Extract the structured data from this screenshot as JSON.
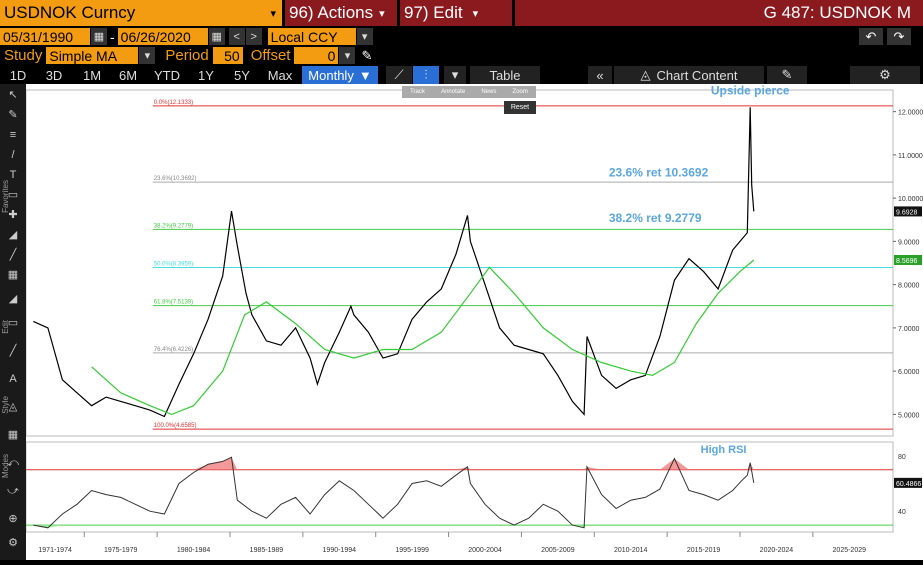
{
  "titlebar": {
    "security": "USDNOK Curncy",
    "actions": "96) Actions",
    "edit": "97) Edit",
    "right_title": "G 487: USDNOK M"
  },
  "params": {
    "start_date": "05/31/1990",
    "dash": "-",
    "end_date": "06/26/2020",
    "currency": "Local CCY",
    "study_label": "Study",
    "study_value": "Simple MA",
    "period_label": "Period",
    "period_value": "50",
    "offset_label": "Offset",
    "offset_value": "0"
  },
  "tabs": [
    "1D",
    "3D",
    "1M",
    "6M",
    "YTD",
    "1Y",
    "5Y",
    "Max"
  ],
  "frequency": "Monthly",
  "table_label": "Table",
  "chart_content_label": "Chart Content",
  "overlay_menu": {
    "track": "Track",
    "annotate": "Annotate",
    "news": "News",
    "zoom": "Zoom",
    "reset": "Reset"
  },
  "side_labels": {
    "favorites": "Favorites",
    "edit": "Edit",
    "style": "Style",
    "modes": "Modes"
  },
  "icons": [
    "cursor-icon",
    "pencil-icon",
    "fib-icon",
    "line-icon",
    "text-icon",
    "ruler-icon",
    "crosshair-icon",
    "shape-icon",
    "grid-icon",
    "undo-icon",
    "redo-icon",
    "gear-icon",
    "edit-icon",
    "chart-icon"
  ],
  "colors": {
    "price": "#000000",
    "ma": "#33cc33",
    "rsi": "#333333",
    "annot": "#5ba7e0",
    "fib_red": "#e03030",
    "fib_green": "#44cc44",
    "fib_cyan": "#44dddd",
    "fib_gray": "#aaaaaa",
    "rsi_high_fill": "#f08080",
    "rsi_low_fill": "#90ee90"
  },
  "chart_data": {
    "type": "line",
    "x_ticks": [
      "1971-1974",
      "1975-1979",
      "1980-1984",
      "1985-1989",
      "1990-1994",
      "1995-1999",
      "2000-2004",
      "2005-2009",
      "2010-2014",
      "2015-2019",
      "2020-2024",
      "2025-2029"
    ],
    "x_tick_years": [
      1972.5,
      1977,
      1982,
      1987,
      1992,
      1997,
      2002,
      2007,
      2012,
      2017,
      2022,
      2027
    ],
    "xlim": [
      1970.5,
      2030
    ],
    "ylim": [
      4.5,
      12.5
    ],
    "y_ticks": [
      "5.0000",
      "6.0000",
      "7.0000",
      "8.0000",
      "9.0000",
      "10.0000",
      "11.0000",
      "12.0000"
    ],
    "y_tick_values": [
      5,
      6,
      7,
      8,
      9,
      10,
      11,
      12
    ],
    "last_price_label": "9.6928",
    "last_price": 9.6928,
    "ma_label": "8.5696",
    "ma_value": 8.5696,
    "price_series": {
      "name": "USDNOK",
      "x": [
        1971,
        1972,
        1973,
        1974,
        1975,
        1976,
        1977,
        1978,
        1979,
        1980,
        1981,
        1982,
        1983,
        1984,
        1984.6,
        1985,
        1985.6,
        1986,
        1987,
        1988,
        1989,
        1990,
        1990.5,
        1991,
        1992,
        1992.8,
        1993,
        1994,
        1995,
        1996,
        1997,
        1998,
        1999,
        2000,
        2000.8,
        2001,
        2002,
        2003,
        2004,
        2005,
        2006,
        2007,
        2008,
        2008.8,
        2009,
        2010,
        2011,
        2012,
        2013,
        2014,
        2015,
        2016,
        2017,
        2018,
        2019,
        2019.5,
        2020,
        2020.2,
        2020.3,
        2020.45
      ],
      "y": [
        7.15,
        7.0,
        5.8,
        5.5,
        5.2,
        5.4,
        5.3,
        5.2,
        5.1,
        4.95,
        5.7,
        6.4,
        7.2,
        8.2,
        9.7,
        8.9,
        7.8,
        7.3,
        6.7,
        6.6,
        7.0,
        6.3,
        5.7,
        6.2,
        6.9,
        7.5,
        7.3,
        6.9,
        6.3,
        6.4,
        7.2,
        7.6,
        7.9,
        8.7,
        9.6,
        9.0,
        8.0,
        7.0,
        6.6,
        6.5,
        6.4,
        5.9,
        5.3,
        5.0,
        6.8,
        5.9,
        5.6,
        5.8,
        5.9,
        6.8,
        8.1,
        8.6,
        8.3,
        7.9,
        8.8,
        9.0,
        9.2,
        12.1,
        10.3,
        9.6928
      ]
    },
    "ma_series": {
      "name": "Simple MA 50",
      "x": [
        1975,
        1977,
        1979,
        1980.5,
        1982,
        1984,
        1985.5,
        1987,
        1989,
        1991,
        1993,
        1995,
        1997,
        1999,
        2001,
        2002.3,
        2004,
        2006,
        2008,
        2010,
        2012,
        2013.5,
        2015,
        2016.5,
        2018,
        2019.5,
        2020.45
      ],
      "y": [
        6.1,
        5.5,
        5.2,
        5.0,
        5.2,
        6.0,
        7.3,
        7.6,
        7.1,
        6.5,
        6.3,
        6.5,
        6.5,
        6.9,
        7.8,
        8.4,
        7.8,
        7.0,
        6.5,
        6.2,
        6.0,
        5.9,
        6.2,
        7.1,
        7.8,
        8.3,
        8.5696
      ]
    },
    "fib_levels": [
      {
        "label": "0.0%(12.1333)",
        "value": 12.1333,
        "color": "#e03030"
      },
      {
        "label": "23.6%(10.3692)",
        "value": 10.3692,
        "color": "#aaaaaa"
      },
      {
        "label": "38.2%(9.2779)",
        "value": 9.2779,
        "color": "#44cc44"
      },
      {
        "label": "50.0%(8.3959)",
        "value": 8.3959,
        "color": "#44dddd"
      },
      {
        "label": "61.8%(7.5139)",
        "value": 7.5139,
        "color": "#44cc44"
      },
      {
        "label": "76.4%(6.4226)",
        "value": 6.4226,
        "color": "#aaaaaa"
      },
      {
        "label": "100.0%(4.6585)",
        "value": 4.6585,
        "color": "#e03030"
      }
    ],
    "annotations": [
      {
        "text": "Upside pierce",
        "x": 2017.5,
        "y": 12.4
      },
      {
        "text": "23.6% ret 10.3692",
        "x": 2010.5,
        "y": 10.5
      },
      {
        "text": "38.2% ret 9.2779",
        "x": 2010.5,
        "y": 9.45
      }
    ],
    "rsi": {
      "ylim": [
        25,
        90
      ],
      "y_ticks": [
        "40",
        "60",
        "80"
      ],
      "y_tick_values": [
        40,
        60,
        80
      ],
      "high_level": 70,
      "low_level": 30,
      "last_label": "60.4866",
      "last_value": 60.4866,
      "annotation": "High RSI",
      "x": [
        1971,
        1972,
        1973,
        1974,
        1975,
        1976,
        1977,
        1978,
        1979,
        1980,
        1981,
        1982,
        1983,
        1984,
        1984.6,
        1985,
        1986,
        1987,
        1988,
        1989,
        1990,
        1991,
        1992,
        1993,
        1994,
        1995,
        1996,
        1997,
        1998,
        1999,
        2000,
        2000.8,
        2001,
        2002,
        2003,
        2004,
        2005,
        2006,
        2007,
        2008,
        2008.8,
        2009,
        2010,
        2011,
        2012,
        2013,
        2014,
        2015,
        2016,
        2017,
        2018,
        2019,
        2019.6,
        2020,
        2020.2,
        2020.45
      ],
      "y": [
        30,
        28,
        38,
        45,
        55,
        52,
        50,
        45,
        40,
        38,
        60,
        68,
        74,
        76,
        79,
        48,
        40,
        35,
        45,
        50,
        38,
        52,
        62,
        55,
        45,
        35,
        45,
        60,
        62,
        58,
        66,
        72,
        60,
        45,
        35,
        30,
        35,
        45,
        40,
        30,
        28,
        72,
        52,
        42,
        48,
        50,
        56,
        78,
        55,
        52,
        48,
        55,
        62,
        66,
        75,
        60.4866
      ]
    }
  }
}
